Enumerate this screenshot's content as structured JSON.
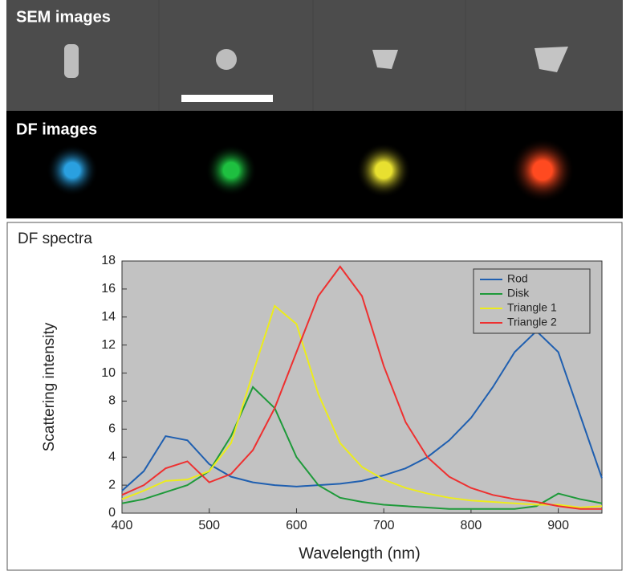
{
  "panels": {
    "sem_label": "SEM images",
    "df_label": "DF images"
  },
  "chart_data": {
    "type": "line",
    "title": "DF spectra",
    "x_label": "Wavelength (nm)",
    "y_label": "Scattering intensity",
    "x": [
      400,
      425,
      450,
      475,
      500,
      525,
      550,
      575,
      600,
      625,
      650,
      675,
      700,
      725,
      750,
      775,
      800,
      825,
      850,
      875,
      900,
      925,
      950
    ],
    "series": [
      {
        "name": "Rod",
        "color": "#1f5fb0",
        "values": [
          1.6,
          3.0,
          5.5,
          5.2,
          3.5,
          2.6,
          2.2,
          2.0,
          1.9,
          2.0,
          2.1,
          2.3,
          2.7,
          3.2,
          4.0,
          5.2,
          6.8,
          9.0,
          11.5,
          13.0,
          11.5,
          7.0,
          2.5
        ]
      },
      {
        "name": "Disk",
        "color": "#1e9a3a",
        "values": [
          0.7,
          1.0,
          1.5,
          2.0,
          3.0,
          5.5,
          9.0,
          7.5,
          4.0,
          2.0,
          1.1,
          0.8,
          0.6,
          0.5,
          0.4,
          0.3,
          0.3,
          0.3,
          0.3,
          0.5,
          1.4,
          1.0,
          0.7
        ]
      },
      {
        "name": "Triangle 1",
        "color": "#ecec1c",
        "values": [
          1.0,
          1.6,
          2.3,
          2.4,
          3.0,
          5.0,
          10.0,
          14.8,
          13.5,
          8.5,
          5.0,
          3.3,
          2.4,
          1.8,
          1.4,
          1.1,
          0.9,
          0.8,
          0.7,
          0.6,
          0.6,
          0.4,
          0.5
        ]
      },
      {
        "name": "Triangle 2",
        "color": "#ee3030",
        "values": [
          1.3,
          2.0,
          3.2,
          3.7,
          2.2,
          2.8,
          4.5,
          7.5,
          11.5,
          15.5,
          17.6,
          15.5,
          10.5,
          6.5,
          4.0,
          2.6,
          1.8,
          1.3,
          1.0,
          0.8,
          0.5,
          0.3,
          0.3
        ]
      }
    ],
    "xlim": [
      400,
      950
    ],
    "xticks": [
      400,
      500,
      600,
      700,
      800,
      900
    ],
    "ylim": [
      0,
      18
    ],
    "yticks": [
      0,
      2,
      4,
      6,
      8,
      10,
      12,
      14,
      16,
      18
    ],
    "legend": "top-right",
    "grid": false
  }
}
